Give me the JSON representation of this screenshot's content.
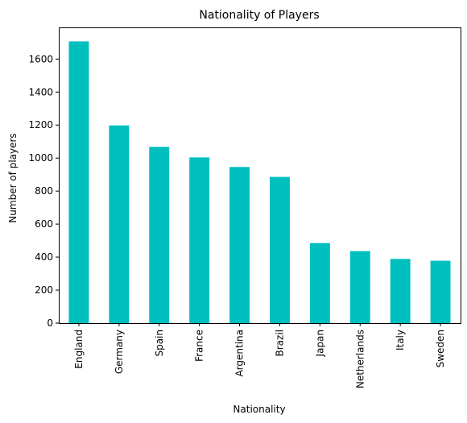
{
  "chart_data": {
    "type": "bar",
    "title": "Nationality of Players",
    "xlabel": "Nationality",
    "ylabel": "Number of players",
    "categories": [
      "England",
      "Germany",
      "Spain",
      "France",
      "Argentina",
      "Brazil",
      "Japan",
      "Netherlands",
      "Italy",
      "Sweden"
    ],
    "values": [
      1707,
      1198,
      1068,
      1004,
      946,
      886,
      485,
      436,
      389,
      378
    ],
    "ylim": [
      0,
      1792
    ],
    "yticks": [
      0,
      200,
      400,
      600,
      800,
      1000,
      1200,
      1400,
      1600
    ],
    "bar_color": "#00bfbf",
    "grid": false,
    "legend": "none"
  }
}
